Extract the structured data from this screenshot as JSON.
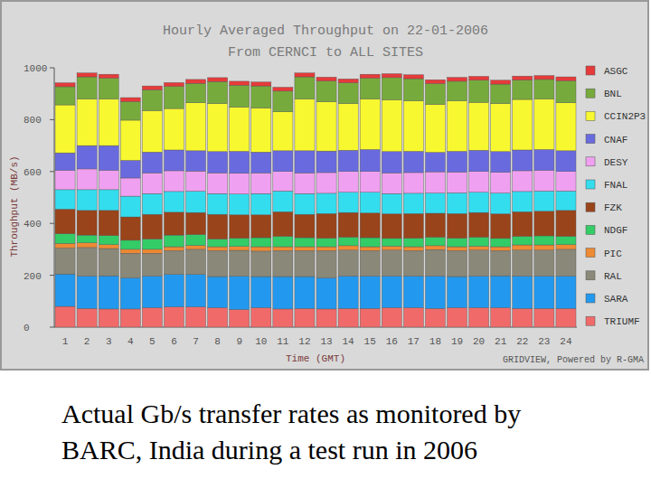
{
  "chart_data": {
    "type": "bar",
    "stacked": true,
    "grid": false,
    "legend": "right",
    "title": "Hourly Averaged Throughput on 22-01-2006",
    "subtitle": "From CERNCI to ALL SITES",
    "y_label": "Throughput (MB/s)",
    "x_label": "Time (GMT)",
    "annotations": [
      "GRIDVIEW, Powered by R-GMA"
    ],
    "categories": [
      "1",
      "2",
      "3",
      "4",
      "5",
      "6",
      "7",
      "8",
      "9",
      "10",
      "11",
      "12",
      "13",
      "14",
      "15",
      "16",
      "17",
      "18",
      "19",
      "20",
      "21",
      "22",
      "23",
      "24"
    ],
    "ylim": [
      0,
      1000
    ],
    "yticks": [
      0,
      200,
      400,
      600,
      800,
      1000
    ],
    "series": [
      {
        "name": "TRIUMF",
        "color": "#f06a6a",
        "values": [
          80,
          72,
          70,
          70,
          75,
          78,
          78,
          75,
          68,
          75,
          70,
          72,
          70,
          72,
          72,
          75,
          75,
          72,
          75,
          75,
          75,
          72,
          72,
          72
        ]
      },
      {
        "name": "SARA",
        "color": "#2299ee",
        "values": [
          125,
          125,
          128,
          120,
          122,
          125,
          125,
          120,
          128,
          120,
          125,
          123,
          120,
          125,
          125,
          122,
          122,
          125,
          120,
          122,
          123,
          125,
          125,
          125
        ]
      },
      {
        "name": "RAL",
        "color": "#8a8878",
        "values": [
          100,
          110,
          105,
          95,
          88,
          92,
          97,
          100,
          100,
          98,
          100,
          100,
          105,
          100,
          98,
          100,
          98,
          102,
          100,
          100,
          97,
          100,
          100,
          103
        ]
      },
      {
        "name": "PIC",
        "color": "#ee8a33",
        "values": [
          18,
          18,
          15,
          15,
          15,
          15,
          15,
          15,
          15,
          17,
          15,
          15,
          15,
          17,
          15,
          15,
          15,
          15,
          15,
          15,
          15,
          20,
          20,
          18
        ]
      },
      {
        "name": "NDGF",
        "color": "#33cc66",
        "values": [
          37,
          30,
          35,
          35,
          40,
          45,
          42,
          30,
          32,
          35,
          40,
          35,
          33,
          33,
          35,
          30,
          33,
          33,
          33,
          35,
          32,
          33,
          35,
          32
        ]
      },
      {
        "name": "FZK",
        "color": "#99441a",
        "values": [
          95,
          95,
          97,
          90,
          95,
          88,
          85,
          95,
          90,
          88,
          95,
          90,
          95,
          95,
          95,
          95,
          95,
          92,
          95,
          95,
          95,
          95,
          95,
          100
        ]
      },
      {
        "name": "FNAL",
        "color": "#33ddee",
        "values": [
          75,
          80,
          80,
          80,
          80,
          80,
          82,
          80,
          80,
          82,
          80,
          80,
          78,
          78,
          80,
          78,
          78,
          78,
          80,
          78,
          80,
          78,
          78,
          75
        ]
      },
      {
        "name": "DESY",
        "color": "#f0a0f0",
        "values": [
          75,
          80,
          75,
          70,
          80,
          80,
          78,
          80,
          80,
          80,
          75,
          80,
          80,
          80,
          80,
          80,
          80,
          82,
          80,
          80,
          80,
          80,
          80,
          75
        ]
      },
      {
        "name": "CNAF",
        "color": "#6a6adf",
        "values": [
          67,
          90,
          95,
          68,
          80,
          80,
          78,
          82,
          85,
          80,
          80,
          85,
          83,
          82,
          85,
          82,
          82,
          75,
          80,
          82,
          80,
          80,
          80,
          80
        ]
      },
      {
        "name": "CCIN2P3",
        "color": "#f8f830",
        "values": [
          185,
          180,
          180,
          155,
          160,
          160,
          185,
          185,
          170,
          170,
          150,
          200,
          190,
          180,
          195,
          200,
          195,
          185,
          195,
          185,
          185,
          195,
          195,
          185
        ]
      },
      {
        "name": "BNL",
        "color": "#77aa3c",
        "values": [
          70,
          85,
          80,
          72,
          80,
          85,
          75,
          85,
          85,
          85,
          80,
          85,
          80,
          80,
          80,
          85,
          85,
          80,
          75,
          85,
          75,
          75,
          75,
          85
        ]
      },
      {
        "name": "ASGC",
        "color": "#e63a3a",
        "values": [
          15,
          15,
          15,
          15,
          15,
          15,
          15,
          15,
          15,
          15,
          15,
          15,
          15,
          15,
          15,
          15,
          15,
          15,
          15,
          15,
          15,
          15,
          15,
          15
        ]
      }
    ]
  },
  "caption": [
    "Actual Gb/s transfer rates as monitored by",
    "BARC, India during a test run in 2006"
  ]
}
